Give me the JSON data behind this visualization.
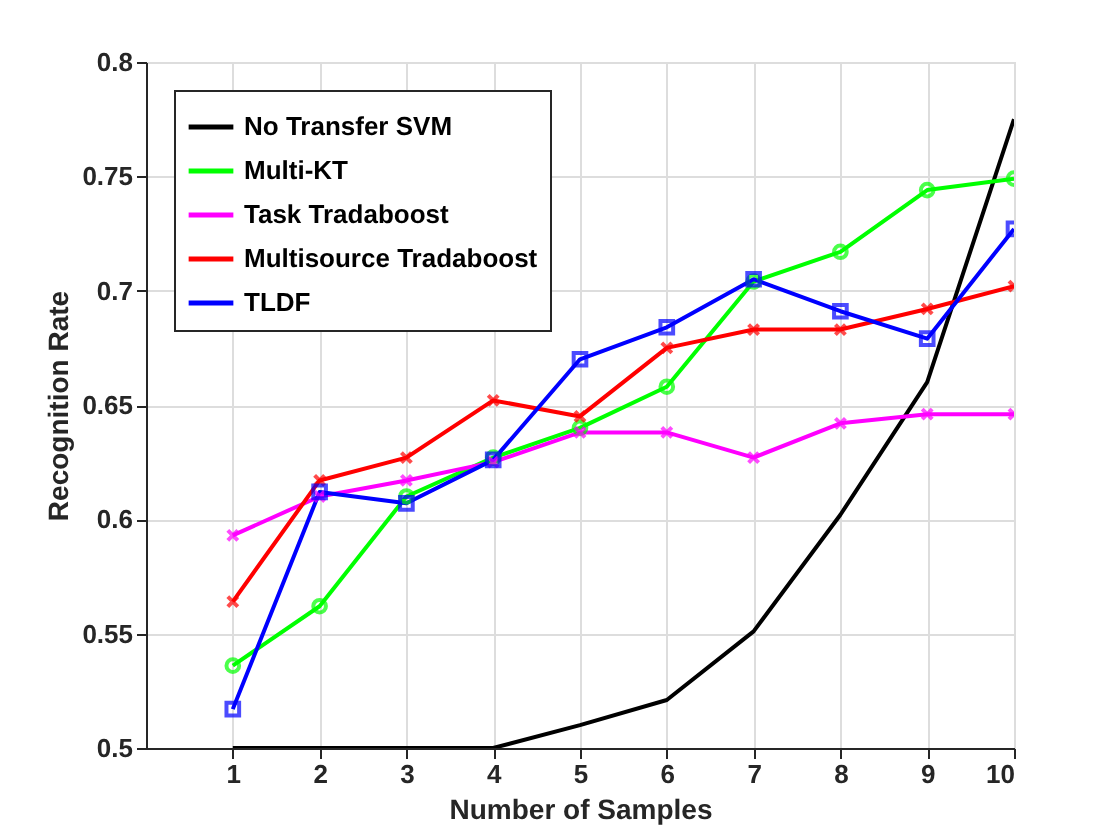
{
  "chart_data": {
    "type": "line",
    "xlabel": "Number of Samples",
    "ylabel": "Recognition Rate",
    "x": [
      1,
      2,
      3,
      4,
      5,
      6,
      7,
      8,
      9,
      10
    ],
    "xlim": [
      0,
      10
    ],
    "xticks": [
      1,
      2,
      3,
      4,
      5,
      6,
      7,
      8,
      9,
      10
    ],
    "ylim": [
      0.5,
      0.8
    ],
    "yticks": [
      0.5,
      0.55,
      0.6,
      0.65,
      0.7,
      0.75,
      0.8
    ],
    "grid": true,
    "legend": "top left",
    "line_style": "solid",
    "series": [
      {
        "name": "No Transfer SVM",
        "color": "#000000",
        "marker": "none",
        "values": [
          0.5,
          0.5,
          0.5,
          0.5,
          0.51,
          0.521,
          0.551,
          0.602,
          0.66,
          0.775
        ]
      },
      {
        "name": "Multi-KT",
        "color": "#00ff00",
        "marker": "circle",
        "values": [
          0.536,
          0.562,
          0.61,
          0.627,
          0.64,
          0.658,
          0.704,
          0.717,
          0.744,
          0.749
        ]
      },
      {
        "name": "Task Tradaboost",
        "color": "#ff00ff",
        "marker": "cross",
        "values": [
          0.593,
          0.61,
          0.617,
          0.625,
          0.638,
          0.638,
          0.627,
          0.642,
          0.646,
          0.646
        ]
      },
      {
        "name": "Multisource Tradaboost",
        "color": "#ff0000",
        "marker": "cross",
        "values": [
          0.564,
          0.617,
          0.627,
          0.652,
          0.645,
          0.675,
          0.683,
          0.683,
          0.692,
          0.702
        ]
      },
      {
        "name": "TLDF",
        "color": "#0000ff",
        "marker": "square",
        "values": [
          0.517,
          0.612,
          0.607,
          0.626,
          0.67,
          0.684,
          0.705,
          0.691,
          0.679,
          0.727
        ]
      }
    ]
  }
}
